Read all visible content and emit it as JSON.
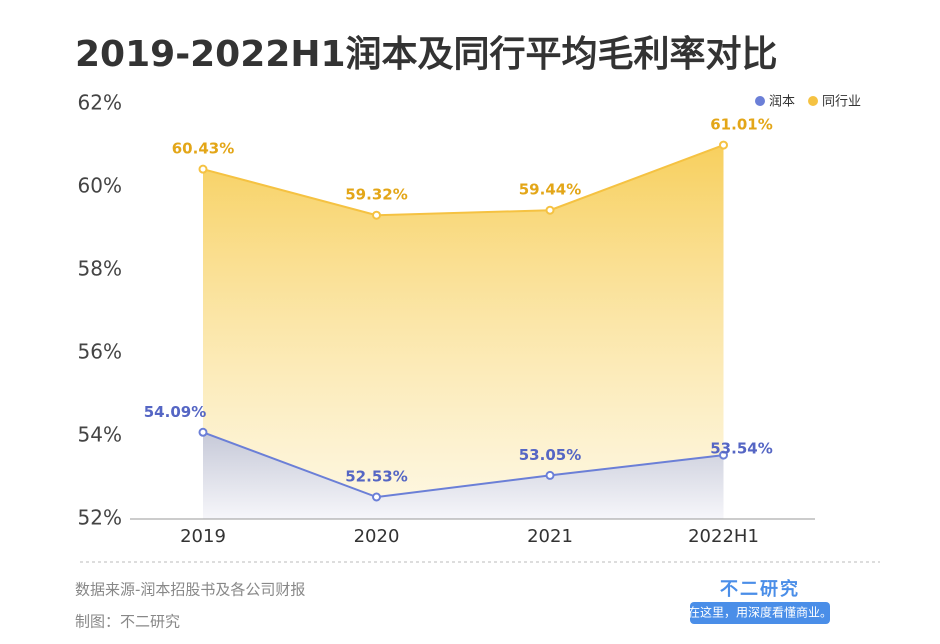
{
  "chart_data": {
    "type": "line",
    "title": "2019-2022H1润本及同行平均毛利率对比",
    "categories": [
      "2019",
      "2020",
      "2021",
      "2022H1"
    ],
    "series": [
      {
        "name": "润本",
        "color": "#6b7fd7",
        "label_color": "#5566c4",
        "values": [
          54.09,
          52.53,
          53.05,
          53.54
        ],
        "value_labels": [
          "54.09%",
          "52.53%",
          "53.05%",
          "53.54%"
        ]
      },
      {
        "name": "同行业",
        "color": "#f5c242",
        "label_color": "#e3a618",
        "values": [
          60.43,
          59.32,
          59.44,
          61.01
        ],
        "value_labels": [
          "60.43%",
          "59.32%",
          "59.44%",
          "61.01%"
        ]
      }
    ],
    "ylim": [
      52,
      62
    ],
    "yticks": [
      {
        "value": 52,
        "label": "52%"
      },
      {
        "value": 54,
        "label": "54%"
      },
      {
        "value": 56,
        "label": "56%"
      },
      {
        "value": 58,
        "label": "58%"
      },
      {
        "value": 60,
        "label": "60%"
      },
      {
        "value": 62,
        "label": "62%"
      }
    ],
    "grid": false,
    "legend": "top-right",
    "source": "数据来源-润本招股书及各公司财报",
    "credit": "制图：不二研究",
    "brand": "不二研究",
    "slogan": "在这里，用深度看懂商业。"
  }
}
